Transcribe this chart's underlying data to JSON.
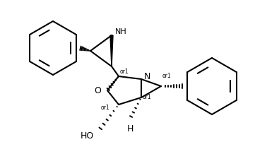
{
  "bg_color": "#ffffff",
  "line_color": "#000000",
  "fig_width": 3.61,
  "fig_height": 2.35,
  "dpi": 100,
  "xlim": [
    0,
    361
  ],
  "ylim": [
    0,
    235
  ]
}
